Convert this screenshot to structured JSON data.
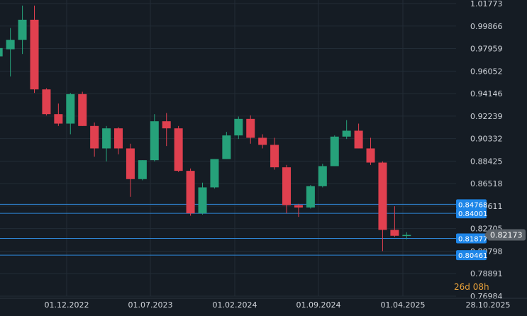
{
  "colors": {
    "background": "#151c24",
    "grid": "#222c36",
    "axis_text": "#d2d6dc",
    "bull": "#26a17a",
    "bear": "#e0404f",
    "level_line": "#2f86d6",
    "level_label_bg": "#1e86e8",
    "price_tag_bg": "#5b6269",
    "countdown": "#e8a13a"
  },
  "countdown": {
    "days": "26d",
    "hours": "08h"
  },
  "chart_data": {
    "type": "candlestick",
    "interval": "monthly",
    "y_ticks": [
      "1.01773",
      "0.99866",
      "0.97959",
      "0.96052",
      "0.94146",
      "0.92239",
      "0.90332",
      "0.88425",
      "0.86518",
      "0.84611",
      "0.82705",
      "0.80798",
      "0.78891",
      "0.76984"
    ],
    "ylim": [
      0.76984,
      1.01773
    ],
    "x_ticks": [
      "01.12.2022",
      "01.07.2023",
      "01.02.2024",
      "01.09.2024",
      "01.04.2025",
      "28.10.2025"
    ],
    "current_price": "0.82173",
    "levels": [
      "0.84768",
      "0.84001",
      "0.81877",
      "0.80461"
    ],
    "candles": [
      {
        "date": "2022-06",
        "open": 0.973,
        "high": 0.98,
        "low": 0.955,
        "close": 0.98
      },
      {
        "date": "2022-07",
        "open": 0.979,
        "high": 0.997,
        "low": 0.956,
        "close": 0.987
      },
      {
        "date": "2022-08",
        "open": 0.987,
        "high": 1.016,
        "low": 0.975,
        "close": 1.004
      },
      {
        "date": "2022-09",
        "open": 1.004,
        "high": 1.016,
        "low": 0.942,
        "close": 0.945
      },
      {
        "date": "2022-10",
        "open": 0.945,
        "high": 0.946,
        "low": 0.923,
        "close": 0.924
      },
      {
        "date": "2022-11",
        "open": 0.924,
        "high": 0.933,
        "low": 0.914,
        "close": 0.916
      },
      {
        "date": "2022-12",
        "open": 0.916,
        "high": 0.942,
        "low": 0.907,
        "close": 0.941
      },
      {
        "date": "2023-01",
        "open": 0.941,
        "high": 0.943,
        "low": 0.914,
        "close": 0.914
      },
      {
        "date": "2023-02",
        "open": 0.914,
        "high": 0.917,
        "low": 0.888,
        "close": 0.895
      },
      {
        "date": "2023-03",
        "open": 0.895,
        "high": 0.914,
        "low": 0.884,
        "close": 0.912
      },
      {
        "date": "2023-04",
        "open": 0.912,
        "high": 0.913,
        "low": 0.89,
        "close": 0.895
      },
      {
        "date": "2023-05",
        "open": 0.895,
        "high": 0.899,
        "low": 0.854,
        "close": 0.869
      },
      {
        "date": "2023-06",
        "open": 0.869,
        "high": 0.885,
        "low": 0.868,
        "close": 0.885
      },
      {
        "date": "2023-07",
        "open": 0.885,
        "high": 0.924,
        "low": 0.884,
        "close": 0.918
      },
      {
        "date": "2023-08",
        "open": 0.918,
        "high": 0.925,
        "low": 0.897,
        "close": 0.912
      },
      {
        "date": "2023-09",
        "open": 0.912,
        "high": 0.914,
        "low": 0.875,
        "close": 0.876
      },
      {
        "date": "2023-10",
        "open": 0.876,
        "high": 0.878,
        "low": 0.838,
        "close": 0.84
      },
      {
        "date": "2023-11",
        "open": 0.84,
        "high": 0.866,
        "low": 0.839,
        "close": 0.862
      },
      {
        "date": "2023-12",
        "open": 0.862,
        "high": 0.886,
        "low": 0.861,
        "close": 0.886
      },
      {
        "date": "2024-01",
        "open": 0.886,
        "high": 0.909,
        "low": 0.886,
        "close": 0.906
      },
      {
        "date": "2024-02",
        "open": 0.906,
        "high": 0.922,
        "low": 0.903,
        "close": 0.92
      },
      {
        "date": "2024-03",
        "open": 0.92,
        "high": 0.923,
        "low": 0.899,
        "close": 0.904
      },
      {
        "date": "2024-04",
        "open": 0.904,
        "high": 0.907,
        "low": 0.895,
        "close": 0.898
      },
      {
        "date": "2024-05",
        "open": 0.898,
        "high": 0.904,
        "low": 0.877,
        "close": 0.879
      },
      {
        "date": "2024-06",
        "open": 0.879,
        "high": 0.881,
        "low": 0.84,
        "close": 0.847
      },
      {
        "date": "2024-07",
        "open": 0.847,
        "high": 0.848,
        "low": 0.837,
        "close": 0.845
      },
      {
        "date": "2024-08",
        "open": 0.845,
        "high": 0.864,
        "low": 0.844,
        "close": 0.863
      },
      {
        "date": "2024-09",
        "open": 0.863,
        "high": 0.882,
        "low": 0.862,
        "close": 0.88
      },
      {
        "date": "2024-10",
        "open": 0.88,
        "high": 0.906,
        "low": 0.88,
        "close": 0.905
      },
      {
        "date": "2024-11",
        "open": 0.905,
        "high": 0.919,
        "low": 0.903,
        "close": 0.91
      },
      {
        "date": "2024-12",
        "open": 0.91,
        "high": 0.916,
        "low": 0.895,
        "close": 0.895
      },
      {
        "date": "2025-01",
        "open": 0.895,
        "high": 0.904,
        "low": 0.881,
        "close": 0.883
      },
      {
        "date": "2025-02",
        "open": 0.883,
        "high": 0.884,
        "low": 0.808,
        "close": 0.826
      },
      {
        "date": "2025-03",
        "open": 0.826,
        "high": 0.846,
        "low": 0.82,
        "close": 0.821
      },
      {
        "date": "2025-04",
        "open": 0.821,
        "high": 0.824,
        "low": 0.818,
        "close": 0.8217
      }
    ]
  }
}
